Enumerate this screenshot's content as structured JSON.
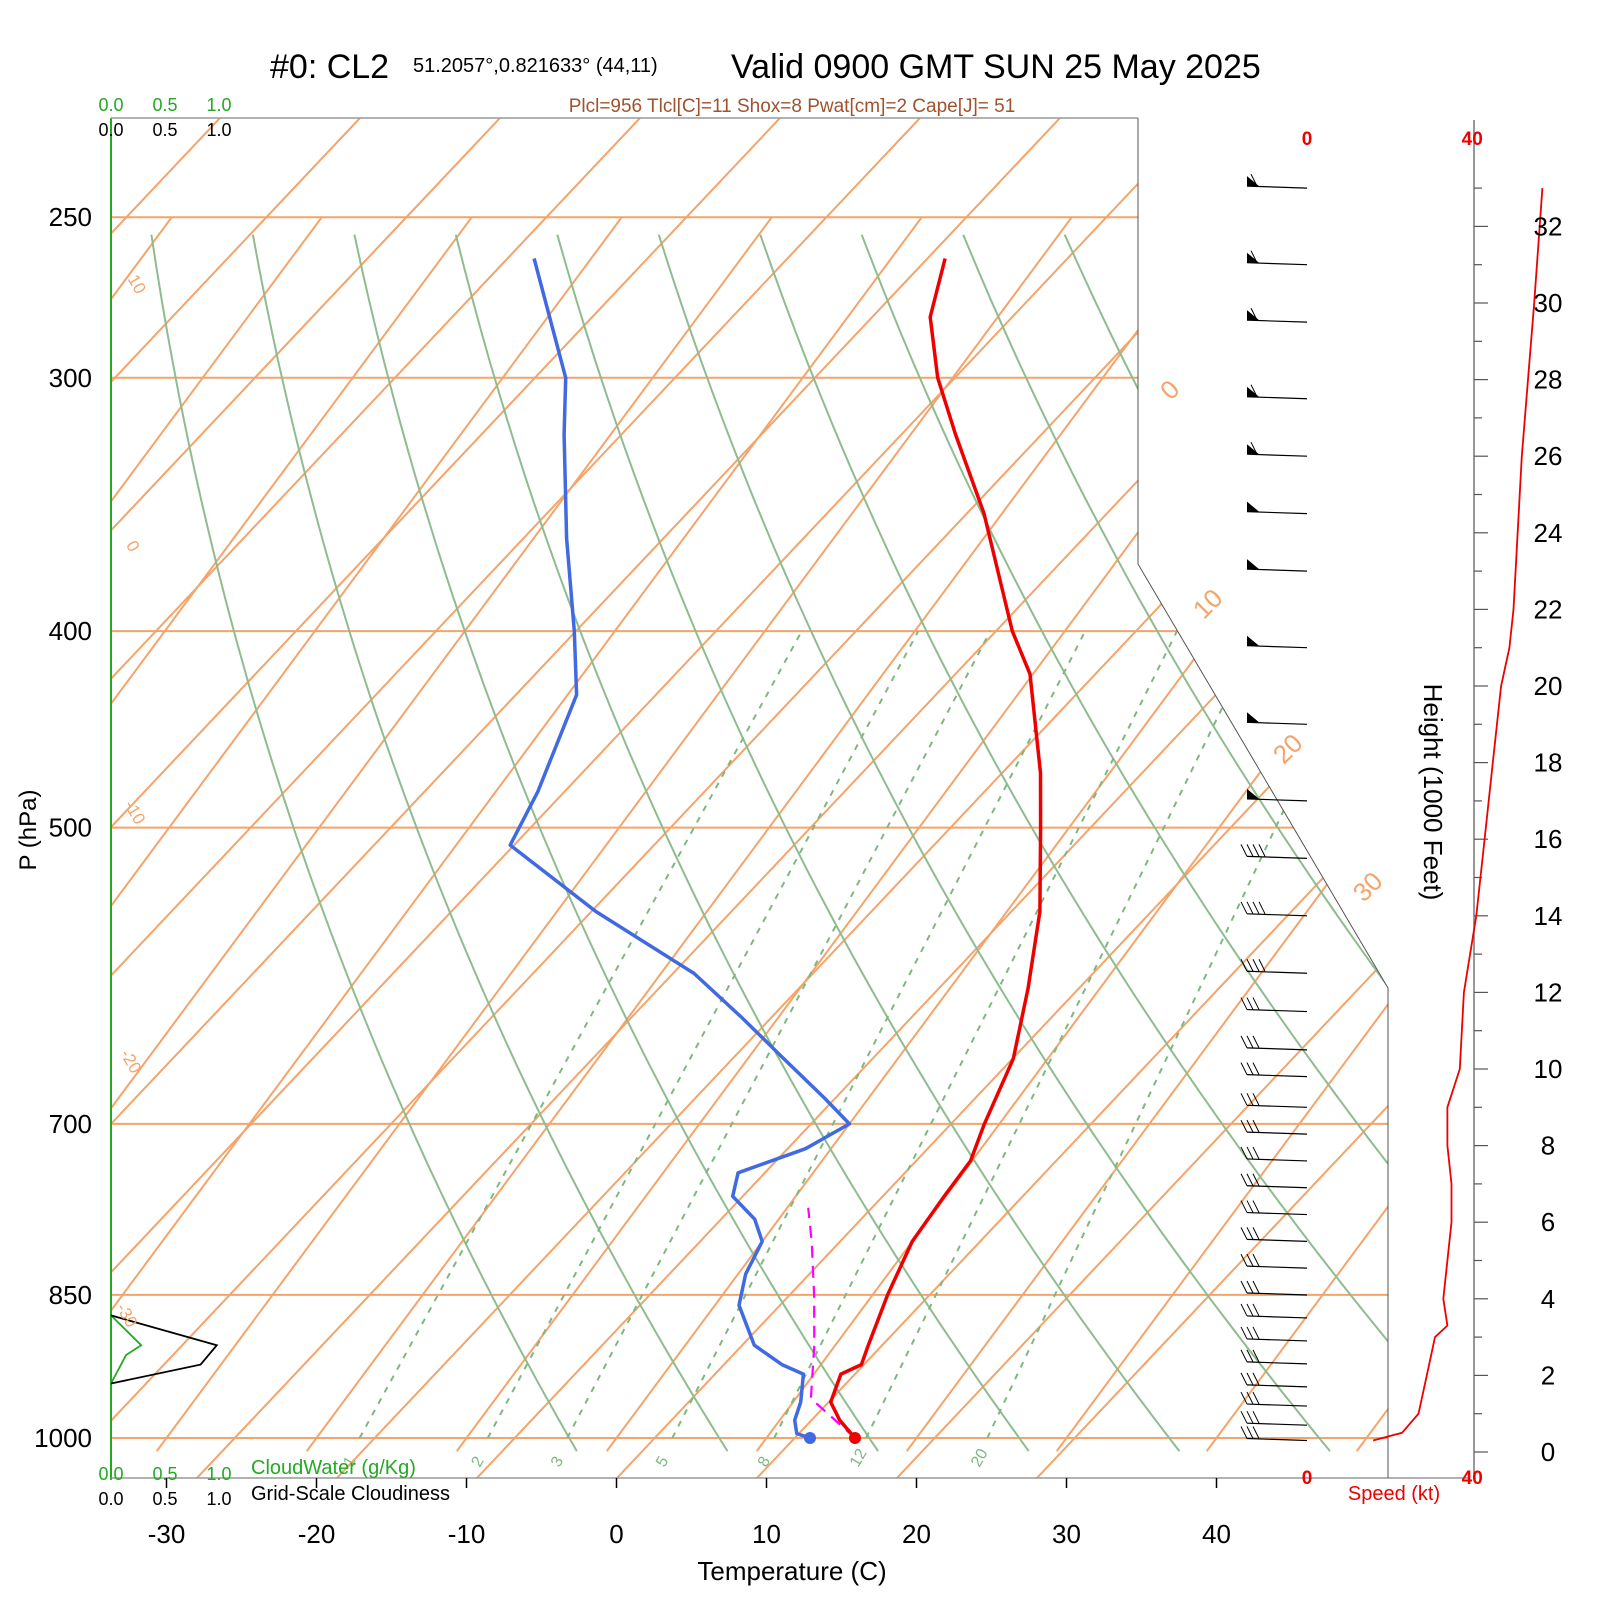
{
  "title": {
    "main": "#0: CL2",
    "coords": "51.2057°,0.821633° (44,11)",
    "valid": "Valid 0900 GMT SUN 25 May 2025",
    "indices": "Plcl=956 Tlcl[C]=11 Shox=8 Pwat[cm]=2 Cape[J]= 51"
  },
  "colors": {
    "temperature": "#ee0000",
    "dewpoint": "#4169e1",
    "parcel": "#ff00ff",
    "isotherm": "#f4a46a",
    "dry_adiabat": "#8fbc8f",
    "mixing_ratio": "#7fb87f",
    "cloud_water": "#22aa22",
    "cloudiness": "#000000",
    "wind_speed": "#ee0000"
  },
  "chart_data": {
    "type": "line",
    "subtype": "skew-t log-p sounding",
    "xlabel": "Temperature (C)",
    "ylabel": "P (hPa)",
    "x_ticks": [
      "-30",
      "-20",
      "-10",
      "0",
      "10",
      "20",
      "30",
      "40"
    ],
    "xlim": [
      -33,
      36
    ],
    "pressure_ticks": [
      "250",
      "300",
      "400",
      "500",
      "700",
      "850",
      "1000"
    ],
    "pressure_range": [
      250,
      1015
    ],
    "height_label": "Height (1000 Feet)",
    "height_ticks": [
      "0",
      "2",
      "4",
      "6",
      "8",
      "10",
      "12",
      "14",
      "16",
      "18",
      "20",
      "22",
      "24",
      "26",
      "28",
      "30",
      "32"
    ],
    "isotherm_labels": [
      "10",
      "0",
      "-10",
      "-20",
      "-30",
      "0",
      "10",
      "20",
      "30"
    ],
    "mixing_ratio_labels": [
      "1",
      "2",
      "3",
      "5",
      "8",
      "12",
      "20"
    ],
    "series": [
      {
        "name": "Temperature",
        "points": [
          {
            "p": 1000,
            "t": 15.9
          },
          {
            "p": 980,
            "t": 14.0
          },
          {
            "p": 960,
            "t": 12.5
          },
          {
            "p": 930,
            "t": 11.8
          },
          {
            "p": 920,
            "t": 12.7
          },
          {
            "p": 900,
            "t": 12.2
          },
          {
            "p": 850,
            "t": 11.0
          },
          {
            "p": 800,
            "t": 10.0
          },
          {
            "p": 760,
            "t": 9.9
          },
          {
            "p": 730,
            "t": 9.9
          },
          {
            "p": 700,
            "t": 9.0
          },
          {
            "p": 650,
            "t": 7.7
          },
          {
            "p": 600,
            "t": 5.2
          },
          {
            "p": 550,
            "t": 2.2
          },
          {
            "p": 500,
            "t": -1.9
          },
          {
            "p": 470,
            "t": -4.6
          },
          {
            "p": 420,
            "t": -10.2
          },
          {
            "p": 400,
            "t": -13.5
          },
          {
            "p": 350,
            "t": -21.2
          },
          {
            "p": 320,
            "t": -27.0
          },
          {
            "p": 300,
            "t": -31.0
          },
          {
            "p": 280,
            "t": -34.5
          },
          {
            "p": 262,
            "t": -36.4
          }
        ]
      },
      {
        "name": "Dewpoint",
        "points": [
          {
            "p": 1000,
            "t": 12.9
          },
          {
            "p": 995,
            "t": 11.8
          },
          {
            "p": 980,
            "t": 11.0
          },
          {
            "p": 960,
            "t": 10.5
          },
          {
            "p": 930,
            "t": 9.3
          },
          {
            "p": 920,
            "t": 7.4
          },
          {
            "p": 900,
            "t": 4.6
          },
          {
            "p": 860,
            "t": 1.6
          },
          {
            "p": 830,
            "t": 0.5
          },
          {
            "p": 800,
            "t": 0.0
          },
          {
            "p": 780,
            "t": -1.6
          },
          {
            "p": 760,
            "t": -4.2
          },
          {
            "p": 740,
            "t": -5.0
          },
          {
            "p": 720,
            "t": -1.7
          },
          {
            "p": 700,
            "t": 0.0
          },
          {
            "p": 680,
            "t": -2.9
          },
          {
            "p": 650,
            "t": -7.6
          },
          {
            "p": 620,
            "t": -12.5
          },
          {
            "p": 590,
            "t": -17.8
          },
          {
            "p": 550,
            "t": -27.4
          },
          {
            "p": 510,
            "t": -36.4
          },
          {
            "p": 480,
            "t": -37.2
          },
          {
            "p": 430,
            "t": -39.4
          },
          {
            "p": 400,
            "t": -42.7
          },
          {
            "p": 360,
            "t": -47.8
          },
          {
            "p": 320,
            "t": -53.1
          },
          {
            "p": 300,
            "t": -55.8
          },
          {
            "p": 262,
            "t": -63.8
          }
        ]
      },
      {
        "name": "Parcel",
        "points": [
          {
            "p": 1000,
            "t": 15.9
          },
          {
            "p": 956,
            "t": 11.0
          },
          {
            "p": 900,
            "t": 8.6
          },
          {
            "p": 850,
            "t": 6.1
          },
          {
            "p": 800,
            "t": 3.3
          },
          {
            "p": 770,
            "t": 1.4
          }
        ]
      }
    ],
    "cloud_water": {
      "label": "CloudWater (g/Kg)",
      "ticks": [
        "0.0",
        "0.5",
        "1.0"
      ],
      "points": [
        {
          "p": 870,
          "v": 0.0
        },
        {
          "p": 900,
          "v": 0.28
        },
        {
          "p": 910,
          "v": 0.14
        },
        {
          "p": 940,
          "v": 0.0
        }
      ]
    },
    "cloudiness": {
      "label": "Grid-Scale Cloudiness",
      "ticks": [
        "0.0",
        "0.5",
        "1.0"
      ],
      "points": [
        {
          "p": 870,
          "v": 0.0
        },
        {
          "p": 900,
          "v": 0.98
        },
        {
          "p": 920,
          "v": 0.83
        },
        {
          "p": 940,
          "v": 0.0
        }
      ]
    },
    "wind": {
      "label": "Speed (kt)",
      "speed_ticks": [
        "0",
        "40",
        "80",
        "120"
      ],
      "profile_kft": [
        {
          "h": 0.3,
          "s": 16
        },
        {
          "h": 0.5,
          "s": 23
        },
        {
          "h": 1,
          "s": 27
        },
        {
          "h": 2,
          "s": 29
        },
        {
          "h": 3,
          "s": 31
        },
        {
          "h": 3.3,
          "s": 34
        },
        {
          "h": 4,
          "s": 33
        },
        {
          "h": 5,
          "s": 34
        },
        {
          "h": 6,
          "s": 35
        },
        {
          "h": 7,
          "s": 35
        },
        {
          "h": 8,
          "s": 34
        },
        {
          "h": 9,
          "s": 34
        },
        {
          "h": 10,
          "s": 37
        },
        {
          "h": 12,
          "s": 38
        },
        {
          "h": 14,
          "s": 41
        },
        {
          "h": 16,
          "s": 43
        },
        {
          "h": 18,
          "s": 45
        },
        {
          "h": 20,
          "s": 47
        },
        {
          "h": 21,
          "s": 49
        },
        {
          "h": 22,
          "s": 50
        },
        {
          "h": 26,
          "s": 52
        },
        {
          "h": 30,
          "s": 55
        },
        {
          "h": 33,
          "s": 57
        }
      ],
      "barbs": [
        {
          "h": 33,
          "flags": 1,
          "bars": 1
        },
        {
          "h": 31,
          "flags": 1,
          "bars": 1
        },
        {
          "h": 29.5,
          "flags": 1,
          "bars": 1
        },
        {
          "h": 27.5,
          "flags": 1,
          "bars": 1
        },
        {
          "h": 26,
          "flags": 1,
          "bars": 1
        },
        {
          "h": 24.5,
          "flags": 1,
          "bars": 0
        },
        {
          "h": 23,
          "flags": 1,
          "bars": 0
        },
        {
          "h": 21,
          "flags": 1,
          "bars": 0
        },
        {
          "h": 19,
          "flags": 1,
          "bars": 0
        },
        {
          "h": 17,
          "flags": 1,
          "bars": 0
        },
        {
          "h": 15.5,
          "flags": 0,
          "bars": 4
        },
        {
          "h": 14,
          "flags": 0,
          "bars": 4
        },
        {
          "h": 12.5,
          "flags": 0,
          "bars": 4
        },
        {
          "h": 11.5,
          "flags": 0,
          "bars": 3
        },
        {
          "h": 10.5,
          "flags": 0,
          "bars": 3
        },
        {
          "h": 9.8,
          "flags": 0,
          "bars": 3
        },
        {
          "h": 9,
          "flags": 0,
          "bars": 3
        },
        {
          "h": 8.3,
          "flags": 0,
          "bars": 3
        },
        {
          "h": 7.6,
          "flags": 0,
          "bars": 3
        },
        {
          "h": 6.9,
          "flags": 0,
          "bars": 3
        },
        {
          "h": 6.2,
          "flags": 0,
          "bars": 3
        },
        {
          "h": 5.5,
          "flags": 0,
          "bars": 3
        },
        {
          "h": 4.8,
          "flags": 0,
          "bars": 3
        },
        {
          "h": 4.1,
          "flags": 0,
          "bars": 3
        },
        {
          "h": 3.5,
          "flags": 0,
          "bars": 3
        },
        {
          "h": 2.9,
          "flags": 0,
          "bars": 3
        },
        {
          "h": 2.3,
          "flags": 0,
          "bars": 3
        },
        {
          "h": 1.7,
          "flags": 0,
          "bars": 3
        },
        {
          "h": 1.2,
          "flags": 0,
          "bars": 3
        },
        {
          "h": 0.7,
          "flags": 0,
          "bars": 3
        },
        {
          "h": 0.3,
          "flags": 0,
          "bars": 3
        }
      ]
    }
  }
}
